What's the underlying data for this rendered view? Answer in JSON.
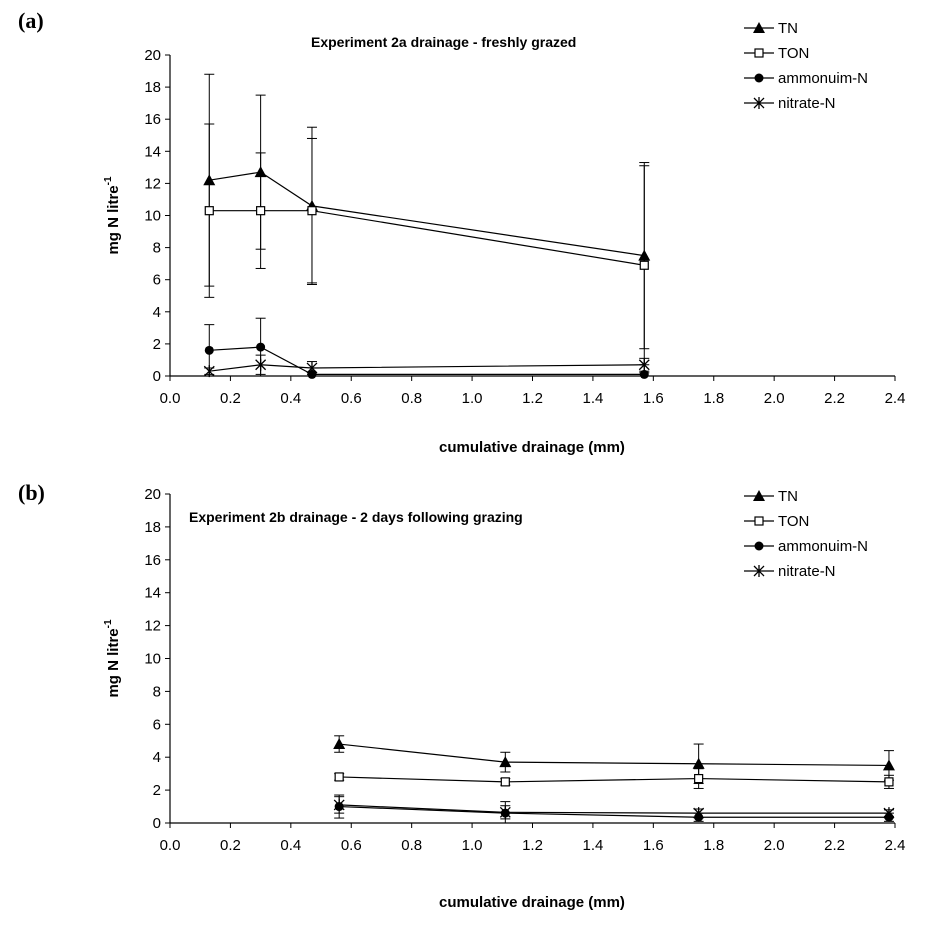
{
  "chart_data": [
    {
      "panel_label": "(a)",
      "type": "line",
      "title": "Experiment 2a drainage - freshly grazed",
      "xlabel": "cumulative drainage (mm)",
      "ylabel_main": "mg N litre",
      "ylabel_sup": "-1",
      "xlim": [
        0,
        2.4
      ],
      "ylim": [
        0,
        20
      ],
      "x_ticks": [
        "0.0",
        "0.2",
        "0.4",
        "0.6",
        "0.8",
        "1.0",
        "1.2",
        "1.4",
        "1.6",
        "1.8",
        "2.0",
        "2.2",
        "2.4"
      ],
      "y_ticks": [
        "0",
        "2",
        "4",
        "6",
        "8",
        "10",
        "12",
        "14",
        "16",
        "18",
        "20"
      ],
      "grid": false,
      "legend_position": "top-right",
      "series": [
        {
          "name": "TN",
          "marker": "triangle",
          "x": [
            0.13,
            0.3,
            0.47,
            1.57
          ],
          "y": [
            12.2,
            12.7,
            10.6,
            7.5
          ],
          "err": [
            6.6,
            4.8,
            4.9,
            5.8
          ]
        },
        {
          "name": "TON",
          "marker": "square",
          "x": [
            0.13,
            0.3,
            0.47,
            1.57
          ],
          "y": [
            10.3,
            10.3,
            10.3,
            6.9
          ],
          "err": [
            5.4,
            3.6,
            4.5,
            6.2
          ]
        },
        {
          "name": "ammonuim-N",
          "marker": "circle",
          "x": [
            0.13,
            0.3,
            0.47,
            1.57
          ],
          "y": [
            1.6,
            1.8,
            0.1,
            0.1
          ],
          "err": [
            1.6,
            1.8,
            0.1,
            0.1
          ]
        },
        {
          "name": "nitrate-N",
          "marker": "star",
          "x": [
            0.13,
            0.3,
            0.47,
            1.57
          ],
          "y": [
            0.3,
            0.7,
            0.5,
            0.7
          ],
          "err": [
            0.2,
            0.6,
            0.4,
            0.4
          ]
        }
      ]
    },
    {
      "panel_label": "(b)",
      "type": "line",
      "title": "Experiment 2b drainage -  2 days following grazing",
      "xlabel": "cumulative drainage (mm)",
      "ylabel_main": "mg N litre",
      "ylabel_sup": "-1",
      "xlim": [
        0,
        2.4
      ],
      "ylim": [
        0,
        20
      ],
      "x_ticks": [
        "0.0",
        "0.2",
        "0.4",
        "0.6",
        "0.8",
        "1.0",
        "1.2",
        "1.4",
        "1.6",
        "1.8",
        "2.0",
        "2.2",
        "2.4"
      ],
      "y_ticks": [
        "0",
        "2",
        "4",
        "6",
        "8",
        "10",
        "12",
        "14",
        "16",
        "18",
        "20"
      ],
      "grid": false,
      "legend_position": "top-right",
      "series": [
        {
          "name": "TN",
          "marker": "triangle",
          "x": [
            0.56,
            1.11,
            1.75,
            2.38
          ],
          "y": [
            4.8,
            3.7,
            3.6,
            3.5
          ],
          "err": [
            0.5,
            0.6,
            1.2,
            0.9
          ]
        },
        {
          "name": "TON",
          "marker": "square",
          "x": [
            0.56,
            1.11,
            1.75,
            2.38
          ],
          "y": [
            2.8,
            2.5,
            2.7,
            2.5
          ],
          "err": [
            0.2,
            0.2,
            0.6,
            0.4
          ]
        },
        {
          "name": "ammonuim-N",
          "marker": "circle",
          "x": [
            0.56,
            1.11,
            1.75,
            2.38
          ],
          "y": [
            1.0,
            0.6,
            0.35,
            0.35
          ],
          "err": [
            0.7,
            0.7,
            0.25,
            0.25
          ]
        },
        {
          "name": "nitrate-N",
          "marker": "star",
          "x": [
            0.56,
            1.11,
            1.75,
            2.38
          ],
          "y": [
            1.1,
            0.65,
            0.6,
            0.6
          ],
          "err": [
            0.5,
            0.4,
            0.25,
            0.2
          ]
        }
      ]
    }
  ]
}
